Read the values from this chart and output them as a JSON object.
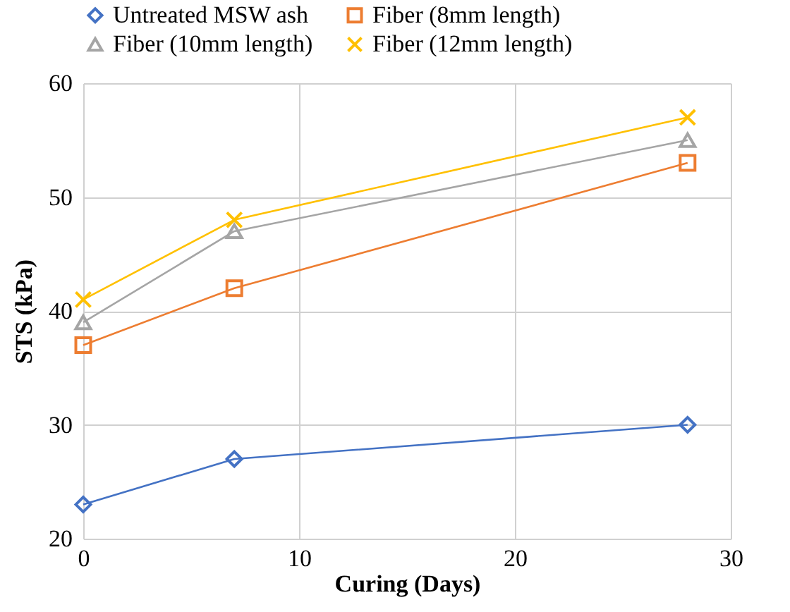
{
  "chart_data": {
    "type": "line",
    "xlabel": "Curing (Days)",
    "ylabel": "STS (kPa)",
    "x": [
      0,
      7,
      28
    ],
    "series": [
      {
        "name": "Untreated MSW ash",
        "color": "#4472c4",
        "marker": "diamond",
        "values": [
          23,
          27,
          30
        ]
      },
      {
        "name": "Fiber (8mm length)",
        "color": "#ed7d31",
        "marker": "square",
        "values": [
          37,
          42,
          53
        ]
      },
      {
        "name": "Fiber (10mm length)",
        "color": "#a5a5a5",
        "marker": "triangle",
        "values": [
          39,
          47,
          55
        ]
      },
      {
        "name": "Fiber (12mm length)",
        "color": "#ffc000",
        "marker": "cross",
        "values": [
          41,
          48,
          57
        ]
      }
    ],
    "xlim": [
      0,
      30
    ],
    "xticks": [
      0,
      10,
      20,
      30
    ],
    "ylim": [
      20,
      60
    ],
    "yticks": [
      20,
      30,
      40,
      50,
      60
    ],
    "grid": true,
    "legend": "top",
    "line_style": "solid"
  }
}
